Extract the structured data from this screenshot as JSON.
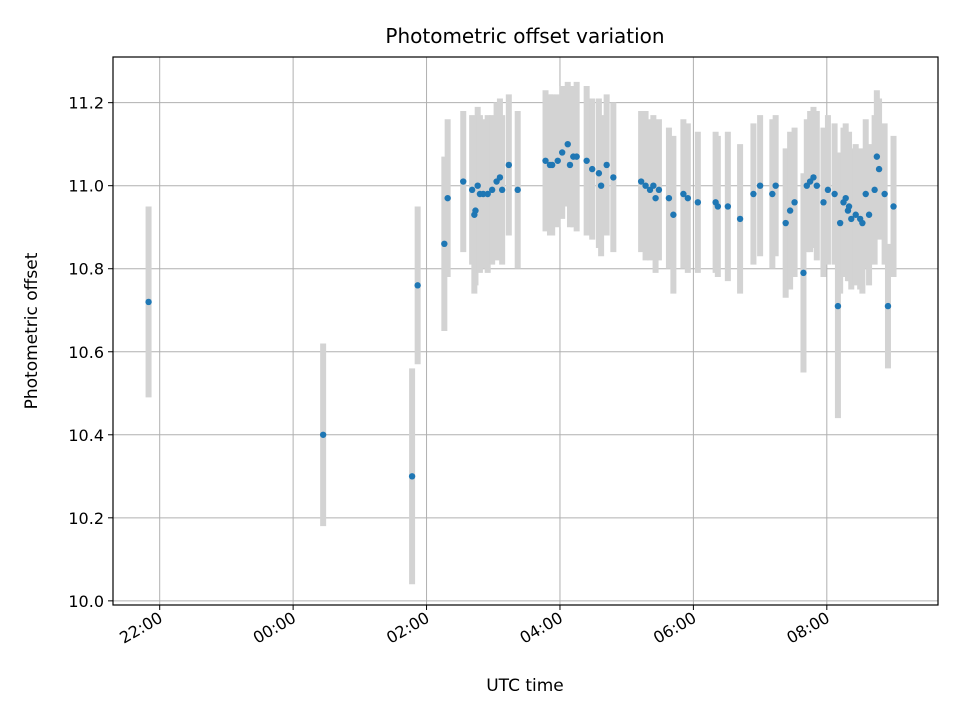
{
  "chart_data": {
    "type": "scatter",
    "title": "Photometric offset variation",
    "xlabel": "UTC time",
    "ylabel": "Photometric offset",
    "x_axis": {
      "kind": "time",
      "range": [
        "21:18",
        "09:40"
      ],
      "ticks": [
        "22:00",
        "00:00",
        "02:00",
        "04:00",
        "06:00",
        "08:00"
      ]
    },
    "ylim": [
      9.99,
      11.31
    ],
    "y_ticks": [
      10.0,
      10.2,
      10.4,
      10.6,
      10.8,
      11.0,
      11.2
    ],
    "grid": true,
    "colors": {
      "points": "#1f77b4",
      "errorbars": "#d3d3d3",
      "grid": "#b0b0b0"
    },
    "series": [
      {
        "x": [
          "21:50",
          "00:27",
          "01:47",
          "01:52",
          "02:16",
          "02:19",
          "02:33",
          "02:41",
          "02:43",
          "02:44",
          "02:46",
          "02:48",
          "02:51",
          "02:55",
          "02:59",
          "03:03",
          "03:06",
          "03:08",
          "03:14",
          "03:22",
          "03:47",
          "03:51",
          "03:53",
          "03:58",
          "04:02",
          "04:07",
          "04:09",
          "04:12",
          "04:15",
          "04:24",
          "04:29",
          "04:35",
          "04:37",
          "04:42",
          "04:48",
          "05:13",
          "05:17",
          "05:21",
          "05:24",
          "05:26",
          "05:29",
          "05:38",
          "05:42",
          "05:51",
          "05:55",
          "06:04",
          "06:20",
          "06:22",
          "06:31",
          "06:42",
          "06:54",
          "07:00",
          "07:11",
          "07:14",
          "07:23",
          "07:27",
          "07:31",
          "07:39",
          "07:42",
          "07:45",
          "07:48",
          "07:51",
          "07:57",
          "08:01",
          "08:07",
          "08:10",
          "08:12",
          "08:15",
          "08:17",
          "08:19",
          "08:20",
          "08:22",
          "08:26",
          "08:30",
          "08:32",
          "08:35",
          "08:38",
          "08:43",
          "08:45",
          "08:47",
          "08:52",
          "08:55",
          "09:00"
        ],
        "y": [
          10.72,
          10.4,
          10.3,
          10.76,
          10.86,
          10.97,
          11.01,
          10.99,
          10.93,
          10.94,
          11.0,
          10.98,
          10.98,
          10.98,
          10.99,
          11.01,
          11.02,
          10.99,
          11.05,
          10.99,
          11.06,
          11.05,
          11.05,
          11.06,
          11.08,
          11.1,
          11.05,
          11.07,
          11.07,
          11.06,
          11.04,
          11.03,
          11.0,
          11.05,
          11.02,
          11.01,
          11.0,
          10.99,
          11.0,
          10.97,
          10.99,
          10.97,
          10.93,
          10.98,
          10.97,
          10.96,
          10.96,
          10.95,
          10.95,
          10.92,
          10.98,
          11.0,
          10.98,
          11.0,
          10.91,
          10.94,
          10.96,
          10.79,
          11.0,
          11.01,
          11.02,
          11.0,
          10.96,
          10.99,
          10.98,
          10.71,
          10.91,
          10.96,
          10.97,
          10.94,
          10.95,
          10.92,
          10.93,
          10.92,
          10.91,
          10.98,
          10.93,
          10.99,
          11.07,
          11.04,
          10.98,
          10.71,
          10.95
        ],
        "err": [
          0.23,
          0.22,
          0.26,
          0.19,
          0.21,
          0.19,
          0.17,
          0.18,
          0.19,
          0.18,
          0.19,
          0.19,
          0.18,
          0.19,
          0.18,
          0.19,
          0.19,
          0.18,
          0.17,
          0.19,
          0.17,
          0.17,
          0.17,
          0.16,
          0.16,
          0.15,
          0.15,
          0.17,
          0.18,
          0.18,
          0.17,
          0.18,
          0.17,
          0.17,
          0.18,
          0.17,
          0.18,
          0.17,
          0.17,
          0.18,
          0.17,
          0.17,
          0.19,
          0.18,
          0.18,
          0.17,
          0.17,
          0.17,
          0.18,
          0.18,
          0.17,
          0.17,
          0.18,
          0.17,
          0.18,
          0.19,
          0.18,
          0.24,
          0.16,
          0.17,
          0.17,
          0.18,
          0.18,
          0.18,
          0.17,
          0.27,
          0.17,
          0.18,
          0.18,
          0.17,
          0.18,
          0.17,
          0.17,
          0.17,
          0.17,
          0.18,
          0.17,
          0.18,
          0.16,
          0.17,
          0.17,
          0.15,
          0.17
        ]
      }
    ]
  }
}
